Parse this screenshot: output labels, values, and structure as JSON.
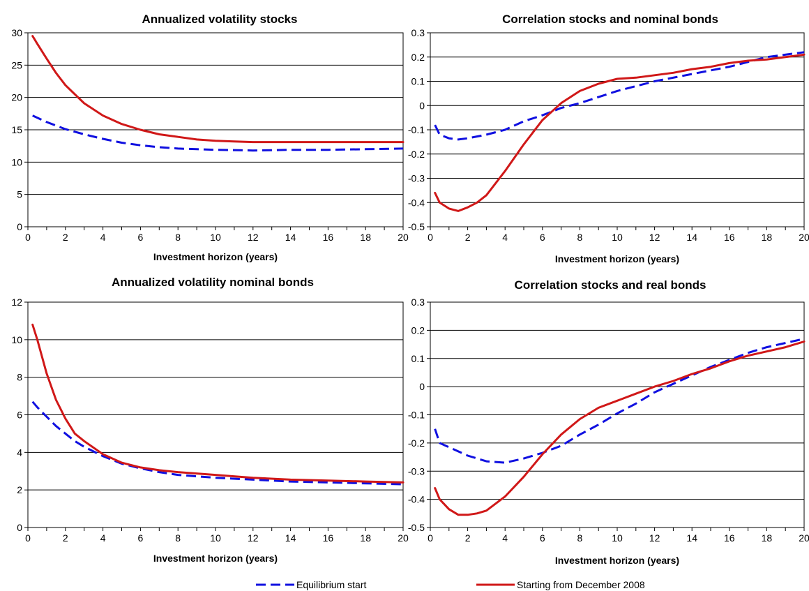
{
  "legend": {
    "position": "bottom",
    "equilibrium_label": "Equilibrium start",
    "dec2008_label": "Starting from December 2008"
  },
  "colors": {
    "equilibrium": "#1010e0",
    "dec2008": "#d01818",
    "grid": "#000000"
  },
  "chart_data": [
    {
      "type": "line",
      "title": "Annualized volatility stocks",
      "xlabel": "Investment horizon (years)",
      "ylabel": "",
      "xlim": [
        0,
        20
      ],
      "ylim": [
        0,
        30
      ],
      "xticks": [
        0,
        2,
        4,
        6,
        8,
        10,
        12,
        14,
        16,
        18,
        20
      ],
      "yticks": [
        0,
        5,
        10,
        15,
        20,
        25,
        30
      ],
      "grid": true,
      "series": [
        {
          "name": "Equilibrium start",
          "style": "dashed",
          "x": [
            0.25,
            1,
            2,
            3,
            4,
            5,
            6,
            7,
            8,
            9,
            10,
            12,
            14,
            16,
            18,
            20
          ],
          "y": [
            17.2,
            16.2,
            15.1,
            14.3,
            13.6,
            13.0,
            12.6,
            12.3,
            12.1,
            12.0,
            11.9,
            11.8,
            11.9,
            11.9,
            12.0,
            12.1
          ]
        },
        {
          "name": "Starting from December 2008",
          "style": "solid",
          "x": [
            0.25,
            0.5,
            1,
            1.5,
            2,
            3,
            4,
            5,
            6,
            7,
            8,
            9,
            10,
            11,
            12,
            14,
            16,
            18,
            20
          ],
          "y": [
            29.5,
            28.3,
            26.0,
            23.8,
            21.9,
            19.1,
            17.2,
            15.9,
            15.0,
            14.3,
            13.9,
            13.5,
            13.3,
            13.2,
            13.1,
            13.1,
            13.1,
            13.1,
            13.1
          ]
        }
      ]
    },
    {
      "type": "line",
      "title": "Correlation stocks and nominal bonds",
      "xlabel": "Investment horizon (years)",
      "ylabel": "",
      "xlim": [
        0,
        20
      ],
      "ylim": [
        -0.5,
        0.3
      ],
      "xticks": [
        0,
        2,
        4,
        6,
        8,
        10,
        12,
        14,
        16,
        18,
        20
      ],
      "yticks": [
        -0.5,
        -0.4,
        -0.3,
        -0.2,
        -0.1,
        0,
        0.1,
        0.2,
        0.3
      ],
      "grid": true,
      "series": [
        {
          "name": "Equilibrium start",
          "style": "dashed",
          "x": [
            0.25,
            0.5,
            1,
            1.5,
            2,
            3,
            4,
            5,
            6,
            7,
            8,
            9,
            10,
            12,
            14,
            16,
            18,
            20
          ],
          "y": [
            -0.08,
            -0.12,
            -0.135,
            -0.14,
            -0.135,
            -0.12,
            -0.1,
            -0.065,
            -0.04,
            -0.01,
            0.01,
            0.035,
            0.06,
            0.1,
            0.13,
            0.16,
            0.2,
            0.22
          ]
        },
        {
          "name": "Starting from December 2008",
          "style": "solid",
          "x": [
            0.25,
            0.5,
            1,
            1.5,
            2,
            2.5,
            3,
            4,
            5,
            6,
            7,
            8,
            9,
            10,
            11,
            12,
            13,
            14,
            15,
            16,
            17,
            18,
            19,
            20
          ],
          "y": [
            -0.36,
            -0.4,
            -0.425,
            -0.435,
            -0.42,
            -0.4,
            -0.37,
            -0.27,
            -0.16,
            -0.06,
            0.01,
            0.06,
            0.09,
            0.11,
            0.115,
            0.125,
            0.135,
            0.15,
            0.16,
            0.175,
            0.185,
            0.19,
            0.2,
            0.21
          ]
        }
      ]
    },
    {
      "type": "line",
      "title": "Annualized volatility nominal bonds",
      "xlabel": "Investment horizon (years)",
      "ylabel": "",
      "xlim": [
        0,
        20
      ],
      "ylim": [
        0,
        12
      ],
      "xticks": [
        0,
        2,
        4,
        6,
        8,
        10,
        12,
        14,
        16,
        18,
        20
      ],
      "yticks": [
        0,
        2,
        4,
        6,
        8,
        10,
        12
      ],
      "grid": true,
      "series": [
        {
          "name": "Equilibrium start",
          "style": "dashed",
          "x": [
            0.25,
            0.5,
            1,
            1.5,
            2,
            2.5,
            3,
            4,
            5,
            6,
            7,
            8,
            10,
            12,
            14,
            16,
            18,
            20
          ],
          "y": [
            6.7,
            6.4,
            5.9,
            5.4,
            5.0,
            4.6,
            4.3,
            3.8,
            3.4,
            3.15,
            2.95,
            2.8,
            2.65,
            2.55,
            2.45,
            2.4,
            2.35,
            2.3
          ]
        },
        {
          "name": "Starting from December 2008",
          "style": "solid",
          "x": [
            0.25,
            0.5,
            1,
            1.5,
            2,
            2.5,
            3,
            4,
            5,
            6,
            7,
            8,
            10,
            12,
            14,
            16,
            18,
            20
          ],
          "y": [
            10.8,
            10.0,
            8.2,
            6.8,
            5.8,
            5.0,
            4.6,
            3.9,
            3.45,
            3.2,
            3.05,
            2.95,
            2.8,
            2.65,
            2.55,
            2.5,
            2.45,
            2.4
          ]
        }
      ]
    },
    {
      "type": "line",
      "title": "Correlation stocks and real bonds",
      "xlabel": "Investment horizon (years)",
      "ylabel": "",
      "xlim": [
        0,
        20
      ],
      "ylim": [
        -0.5,
        0.3
      ],
      "xticks": [
        0,
        2,
        4,
        6,
        8,
        10,
        12,
        14,
        16,
        18,
        20
      ],
      "yticks": [
        -0.5,
        -0.4,
        -0.3,
        -0.2,
        -0.1,
        0,
        0.1,
        0.2,
        0.3
      ],
      "grid": true,
      "series": [
        {
          "name": "Equilibrium start",
          "style": "dashed",
          "x": [
            0.25,
            0.5,
            1,
            2,
            3,
            4,
            5,
            6,
            7,
            8,
            9,
            10,
            11,
            12,
            13,
            14,
            15,
            16,
            17,
            18,
            20
          ],
          "y": [
            -0.15,
            -0.2,
            -0.215,
            -0.245,
            -0.265,
            -0.27,
            -0.255,
            -0.235,
            -0.21,
            -0.17,
            -0.135,
            -0.095,
            -0.06,
            -0.02,
            0.01,
            0.04,
            0.07,
            0.095,
            0.12,
            0.14,
            0.17
          ]
        },
        {
          "name": "Starting from December 2008",
          "style": "solid",
          "x": [
            0.25,
            0.5,
            1,
            1.5,
            2,
            2.5,
            3,
            4,
            5,
            6,
            7,
            8,
            9,
            10,
            11,
            12,
            13,
            14,
            15,
            16,
            17,
            18,
            19,
            20
          ],
          "y": [
            -0.36,
            -0.4,
            -0.435,
            -0.455,
            -0.455,
            -0.45,
            -0.44,
            -0.39,
            -0.32,
            -0.24,
            -0.17,
            -0.115,
            -0.075,
            -0.05,
            -0.025,
            0.0,
            0.02,
            0.045,
            0.065,
            0.09,
            0.11,
            0.125,
            0.14,
            0.16
          ]
        }
      ]
    }
  ]
}
